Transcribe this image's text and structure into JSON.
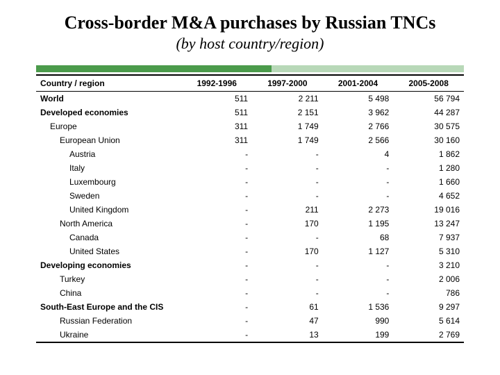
{
  "title": "Cross-border M&A purchases by Russian TNCs",
  "subtitle": "(by host country/region)",
  "table": {
    "type": "table",
    "background_color": "#ffffff",
    "bar_colors": [
      "#4b9b4b",
      "#b8d8b8"
    ],
    "border_color": "#000000",
    "font_size": 12,
    "columns": [
      {
        "label": "Country / region",
        "align": "left"
      },
      {
        "label": "1992-1996",
        "align": "right"
      },
      {
        "label": "1997-2000",
        "align": "right"
      },
      {
        "label": "2001-2004",
        "align": "right"
      },
      {
        "label": "2005-2008",
        "align": "right"
      }
    ],
    "rows": [
      {
        "label": "World",
        "indent": 0,
        "bold": true,
        "values": [
          "511",
          "2 211",
          "5 498",
          "56 794"
        ]
      },
      {
        "label": "Developed economies",
        "indent": 0,
        "bold": true,
        "values": [
          "511",
          "2 151",
          "3 962",
          "44 287"
        ]
      },
      {
        "label": "Europe",
        "indent": 1,
        "bold": false,
        "values": [
          "311",
          "1 749",
          "2 766",
          "30 575"
        ]
      },
      {
        "label": "European Union",
        "indent": 2,
        "bold": false,
        "values": [
          "311",
          "1 749",
          "2 566",
          "30 160"
        ]
      },
      {
        "label": "Austria",
        "indent": 3,
        "bold": false,
        "values": [
          "-",
          "-",
          "4",
          "1 862"
        ]
      },
      {
        "label": "Italy",
        "indent": 3,
        "bold": false,
        "values": [
          "-",
          "-",
          "-",
          "1 280"
        ]
      },
      {
        "label": "Luxembourg",
        "indent": 3,
        "bold": false,
        "values": [
          "-",
          "-",
          "-",
          "1 660"
        ]
      },
      {
        "label": "Sweden",
        "indent": 3,
        "bold": false,
        "values": [
          "-",
          "-",
          "-",
          "4 652"
        ]
      },
      {
        "label": "United Kingdom",
        "indent": 3,
        "bold": false,
        "values": [
          "-",
          "211",
          "2 273",
          "19 016"
        ]
      },
      {
        "label": "North America",
        "indent": 2,
        "bold": false,
        "values": [
          "-",
          "170",
          "1 195",
          "13 247"
        ]
      },
      {
        "label": "Canada",
        "indent": 3,
        "bold": false,
        "values": [
          "-",
          "-",
          "68",
          "7 937"
        ]
      },
      {
        "label": "United States",
        "indent": 3,
        "bold": false,
        "values": [
          "-",
          "170",
          "1 127",
          "5 310"
        ]
      },
      {
        "label": "Developing economies",
        "indent": 0,
        "bold": true,
        "values": [
          "-",
          "-",
          "-",
          "3 210"
        ]
      },
      {
        "label": "Turkey",
        "indent": 2,
        "bold": false,
        "values": [
          "-",
          "-",
          "-",
          "2 006"
        ]
      },
      {
        "label": "China",
        "indent": 2,
        "bold": false,
        "values": [
          "-",
          "-",
          "-",
          "786"
        ]
      },
      {
        "label": "South-East Europe and the CIS",
        "indent": 0,
        "bold": true,
        "values": [
          "-",
          "61",
          "1 536",
          "9 297"
        ]
      },
      {
        "label": "Russian Federation",
        "indent": 2,
        "bold": false,
        "values": [
          "-",
          "47",
          "990",
          "5 614"
        ]
      },
      {
        "label": "Ukraine",
        "indent": 2,
        "bold": false,
        "values": [
          "-",
          "13",
          "199",
          "2 769"
        ]
      }
    ]
  }
}
